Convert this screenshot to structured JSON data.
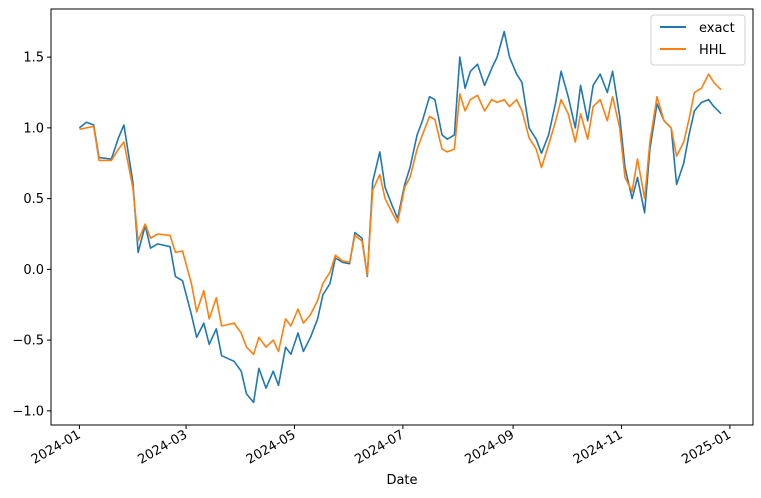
{
  "colors": {
    "exact": "#1f77b4",
    "hhl": "#ff7f0e",
    "axes": "#000000",
    "background": "#ffffff"
  },
  "chart_data": {
    "type": "line",
    "title": "",
    "xlabel": "Date",
    "ylabel": "",
    "x_ticks": [
      "2024-01",
      "2024-03",
      "2024-05",
      "2024-07",
      "2024-09",
      "2024-11",
      "2025-01"
    ],
    "y_ticks": [
      "−1.0",
      "−0.5",
      "0.0",
      "0.5",
      "1.0",
      "1.5"
    ],
    "xlim": [
      "2023-12-16",
      "2025-01-14"
    ],
    "ylim": [
      -1.1,
      1.84
    ],
    "grid": false,
    "legend": "top-right",
    "series": [
      {
        "name": "exact",
        "points": [
          [
            "2024-01-01",
            1.0
          ],
          [
            "2024-01-05",
            1.04
          ],
          [
            "2024-01-09",
            1.02
          ],
          [
            "2024-01-12",
            0.79
          ],
          [
            "2024-01-19",
            0.78
          ],
          [
            "2024-01-23",
            0.93
          ],
          [
            "2024-01-26",
            1.02
          ],
          [
            "2024-01-31",
            0.62
          ],
          [
            "2024-02-03",
            0.12
          ],
          [
            "2024-02-07",
            0.31
          ],
          [
            "2024-02-10",
            0.15
          ],
          [
            "2024-02-14",
            0.18
          ],
          [
            "2024-02-21",
            0.16
          ],
          [
            "2024-02-24",
            -0.05
          ],
          [
            "2024-02-28",
            -0.08
          ],
          [
            "2024-03-04",
            -0.32
          ],
          [
            "2024-03-07",
            -0.48
          ],
          [
            "2024-03-11",
            -0.38
          ],
          [
            "2024-03-14",
            -0.53
          ],
          [
            "2024-03-18",
            -0.42
          ],
          [
            "2024-03-21",
            -0.61
          ],
          [
            "2024-03-28",
            -0.65
          ],
          [
            "2024-04-01",
            -0.72
          ],
          [
            "2024-04-04",
            -0.88
          ],
          [
            "2024-04-08",
            -0.94
          ],
          [
            "2024-04-11",
            -0.7
          ],
          [
            "2024-04-15",
            -0.84
          ],
          [
            "2024-04-19",
            -0.72
          ],
          [
            "2024-04-22",
            -0.82
          ],
          [
            "2024-04-26",
            -0.55
          ],
          [
            "2024-04-29",
            -0.6
          ],
          [
            "2024-05-03",
            -0.45
          ],
          [
            "2024-05-06",
            -0.58
          ],
          [
            "2024-05-10",
            -0.48
          ],
          [
            "2024-05-14",
            -0.35
          ],
          [
            "2024-05-17",
            -0.18
          ],
          [
            "2024-05-21",
            -0.1
          ],
          [
            "2024-05-24",
            0.08
          ],
          [
            "2024-05-28",
            0.05
          ],
          [
            "2024-06-01",
            0.04
          ],
          [
            "2024-06-04",
            0.26
          ],
          [
            "2024-06-08",
            0.22
          ],
          [
            "2024-06-11",
            -0.05
          ],
          [
            "2024-06-14",
            0.62
          ],
          [
            "2024-06-18",
            0.83
          ],
          [
            "2024-06-21",
            0.58
          ],
          [
            "2024-06-25",
            0.45
          ],
          [
            "2024-06-28",
            0.36
          ],
          [
            "2024-07-02",
            0.6
          ],
          [
            "2024-07-05",
            0.72
          ],
          [
            "2024-07-09",
            0.95
          ],
          [
            "2024-07-12",
            1.05
          ],
          [
            "2024-07-16",
            1.22
          ],
          [
            "2024-07-19",
            1.2
          ],
          [
            "2024-07-23",
            0.95
          ],
          [
            "2024-07-26",
            0.92
          ],
          [
            "2024-07-30",
            0.95
          ],
          [
            "2024-08-02",
            1.5
          ],
          [
            "2024-08-05",
            1.28
          ],
          [
            "2024-08-08",
            1.4
          ],
          [
            "2024-08-12",
            1.45
          ],
          [
            "2024-08-16",
            1.3
          ],
          [
            "2024-08-20",
            1.42
          ],
          [
            "2024-08-23",
            1.5
          ],
          [
            "2024-08-27",
            1.68
          ],
          [
            "2024-08-30",
            1.5
          ],
          [
            "2024-09-03",
            1.38
          ],
          [
            "2024-09-06",
            1.32
          ],
          [
            "2024-09-10",
            1.0
          ],
          [
            "2024-09-14",
            0.92
          ],
          [
            "2024-09-17",
            0.82
          ],
          [
            "2024-09-21",
            0.95
          ],
          [
            "2024-09-25",
            1.18
          ],
          [
            "2024-09-28",
            1.4
          ],
          [
            "2024-10-02",
            1.22
          ],
          [
            "2024-10-06",
            1.0
          ],
          [
            "2024-10-09",
            1.3
          ],
          [
            "2024-10-13",
            1.05
          ],
          [
            "2024-10-16",
            1.3
          ],
          [
            "2024-10-20",
            1.38
          ],
          [
            "2024-10-24",
            1.25
          ],
          [
            "2024-10-27",
            1.4
          ],
          [
            "2024-10-31",
            1.08
          ],
          [
            "2024-11-03",
            0.72
          ],
          [
            "2024-11-07",
            0.5
          ],
          [
            "2024-11-10",
            0.65
          ],
          [
            "2024-11-14",
            0.4
          ],
          [
            "2024-11-17",
            0.85
          ],
          [
            "2024-11-21",
            1.17
          ],
          [
            "2024-11-25",
            1.05
          ],
          [
            "2024-11-29",
            1.0
          ],
          [
            "2024-12-02",
            0.6
          ],
          [
            "2024-12-06",
            0.75
          ],
          [
            "2024-12-09",
            0.95
          ],
          [
            "2024-12-12",
            1.12
          ],
          [
            "2024-12-16",
            1.18
          ],
          [
            "2024-12-20",
            1.2
          ],
          [
            "2024-12-23",
            1.15
          ],
          [
            "2024-12-27",
            1.1
          ]
        ]
      },
      {
        "name": "HHL",
        "points": [
          [
            "2024-01-01",
            0.99
          ],
          [
            "2024-01-05",
            1.0
          ],
          [
            "2024-01-09",
            1.01
          ],
          [
            "2024-01-12",
            0.77
          ],
          [
            "2024-01-19",
            0.77
          ],
          [
            "2024-01-23",
            0.85
          ],
          [
            "2024-01-26",
            0.9
          ],
          [
            "2024-01-31",
            0.58
          ],
          [
            "2024-02-03",
            0.2
          ],
          [
            "2024-02-07",
            0.32
          ],
          [
            "2024-02-10",
            0.22
          ],
          [
            "2024-02-14",
            0.25
          ],
          [
            "2024-02-21",
            0.24
          ],
          [
            "2024-02-24",
            0.12
          ],
          [
            "2024-02-28",
            0.13
          ],
          [
            "2024-03-04",
            -0.1
          ],
          [
            "2024-03-07",
            -0.3
          ],
          [
            "2024-03-11",
            -0.15
          ],
          [
            "2024-03-14",
            -0.35
          ],
          [
            "2024-03-18",
            -0.2
          ],
          [
            "2024-03-21",
            -0.4
          ],
          [
            "2024-03-28",
            -0.38
          ],
          [
            "2024-04-01",
            -0.45
          ],
          [
            "2024-04-04",
            -0.55
          ],
          [
            "2024-04-08",
            -0.6
          ],
          [
            "2024-04-11",
            -0.48
          ],
          [
            "2024-04-15",
            -0.55
          ],
          [
            "2024-04-19",
            -0.5
          ],
          [
            "2024-04-22",
            -0.58
          ],
          [
            "2024-04-26",
            -0.35
          ],
          [
            "2024-04-29",
            -0.4
          ],
          [
            "2024-05-03",
            -0.28
          ],
          [
            "2024-05-06",
            -0.38
          ],
          [
            "2024-05-10",
            -0.32
          ],
          [
            "2024-05-14",
            -0.22
          ],
          [
            "2024-05-17",
            -0.1
          ],
          [
            "2024-05-21",
            -0.02
          ],
          [
            "2024-05-24",
            0.1
          ],
          [
            "2024-05-28",
            0.06
          ],
          [
            "2024-06-01",
            0.05
          ],
          [
            "2024-06-04",
            0.24
          ],
          [
            "2024-06-08",
            0.2
          ],
          [
            "2024-06-11",
            -0.04
          ],
          [
            "2024-06-14",
            0.56
          ],
          [
            "2024-06-18",
            0.67
          ],
          [
            "2024-06-21",
            0.5
          ],
          [
            "2024-06-25",
            0.4
          ],
          [
            "2024-06-28",
            0.33
          ],
          [
            "2024-07-02",
            0.58
          ],
          [
            "2024-07-05",
            0.65
          ],
          [
            "2024-07-09",
            0.85
          ],
          [
            "2024-07-12",
            0.95
          ],
          [
            "2024-07-16",
            1.08
          ],
          [
            "2024-07-19",
            1.06
          ],
          [
            "2024-07-23",
            0.85
          ],
          [
            "2024-07-26",
            0.83
          ],
          [
            "2024-07-30",
            0.85
          ],
          [
            "2024-08-02",
            1.24
          ],
          [
            "2024-08-05",
            1.12
          ],
          [
            "2024-08-08",
            1.2
          ],
          [
            "2024-08-12",
            1.23
          ],
          [
            "2024-08-16",
            1.12
          ],
          [
            "2024-08-20",
            1.2
          ],
          [
            "2024-08-23",
            1.18
          ],
          [
            "2024-08-27",
            1.2
          ],
          [
            "2024-08-30",
            1.15
          ],
          [
            "2024-09-03",
            1.2
          ],
          [
            "2024-09-06",
            1.12
          ],
          [
            "2024-09-10",
            0.93
          ],
          [
            "2024-09-14",
            0.85
          ],
          [
            "2024-09-17",
            0.72
          ],
          [
            "2024-09-21",
            0.88
          ],
          [
            "2024-09-25",
            1.05
          ],
          [
            "2024-09-28",
            1.2
          ],
          [
            "2024-10-02",
            1.1
          ],
          [
            "2024-10-06",
            0.9
          ],
          [
            "2024-10-09",
            1.1
          ],
          [
            "2024-10-13",
            0.92
          ],
          [
            "2024-10-16",
            1.15
          ],
          [
            "2024-10-20",
            1.2
          ],
          [
            "2024-10-24",
            1.05
          ],
          [
            "2024-10-27",
            1.22
          ],
          [
            "2024-10-31",
            1.0
          ],
          [
            "2024-11-03",
            0.65
          ],
          [
            "2024-11-07",
            0.55
          ],
          [
            "2024-11-10",
            0.78
          ],
          [
            "2024-11-14",
            0.5
          ],
          [
            "2024-11-17",
            0.9
          ],
          [
            "2024-11-21",
            1.22
          ],
          [
            "2024-11-25",
            1.05
          ],
          [
            "2024-11-29",
            1.0
          ],
          [
            "2024-12-02",
            0.8
          ],
          [
            "2024-12-06",
            0.9
          ],
          [
            "2024-12-09",
            1.06
          ],
          [
            "2024-12-12",
            1.25
          ],
          [
            "2024-12-16",
            1.28
          ],
          [
            "2024-12-20",
            1.38
          ],
          [
            "2024-12-23",
            1.32
          ],
          [
            "2024-12-27",
            1.27
          ]
        ]
      }
    ]
  }
}
